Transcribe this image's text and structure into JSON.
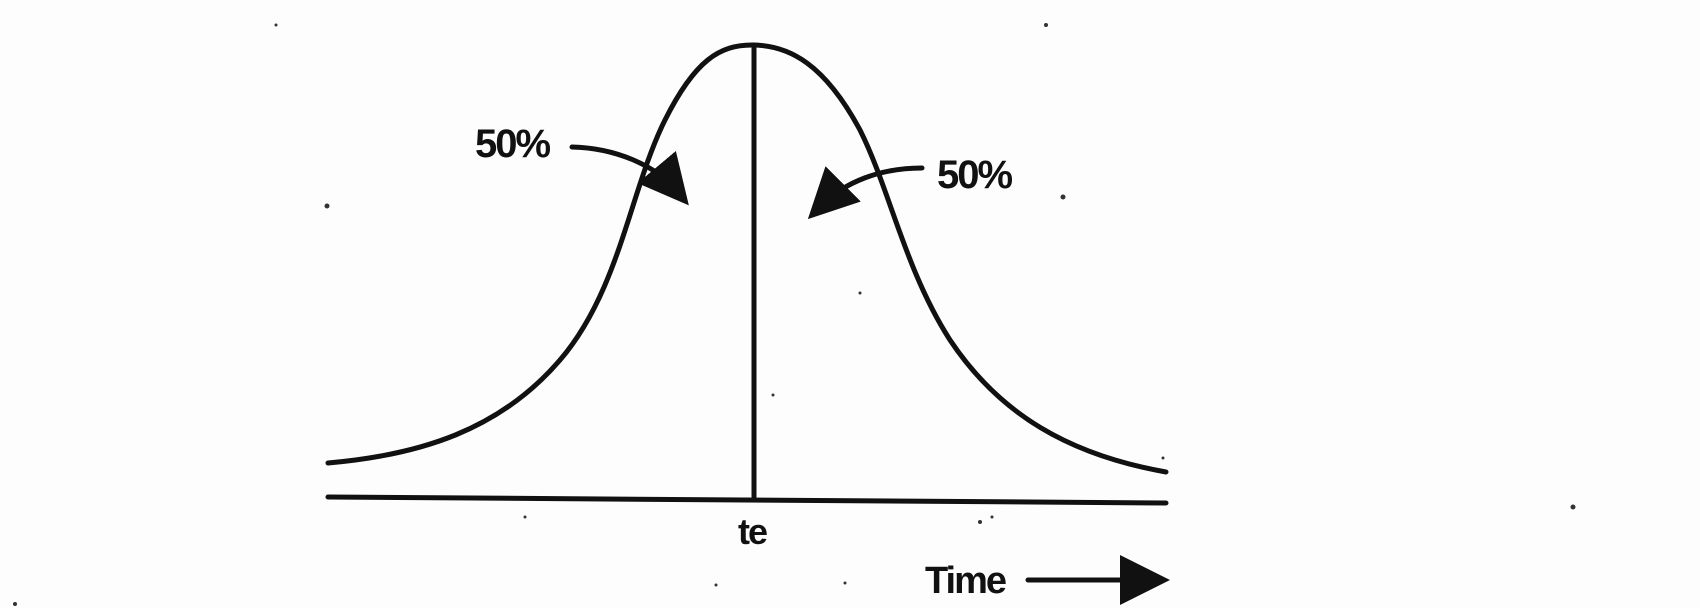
{
  "labels": {
    "left_percent": "50%",
    "right_percent": "50%",
    "center_tick": "te",
    "x_axis": "Time"
  },
  "icons": {
    "left_pointer": "curved-arrow-icon",
    "right_pointer": "curved-arrow-icon",
    "time_direction": "arrow-right-icon"
  },
  "colors": {
    "ink": "#111111",
    "background": "#fdfdfd"
  }
}
